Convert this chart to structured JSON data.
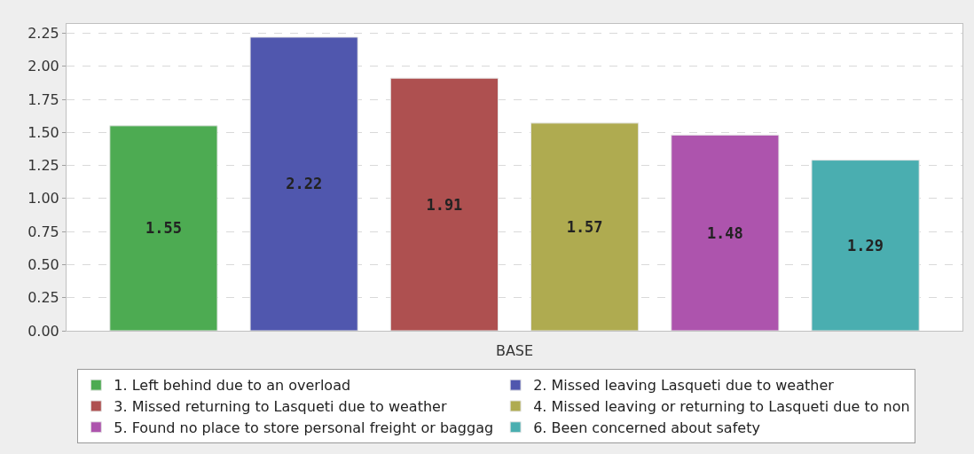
{
  "chart_data": {
    "type": "bar",
    "categories": [
      "BASE"
    ],
    "series": [
      {
        "name": "1. Left behind due to an overload",
        "color": "#4dab52",
        "values": [
          1.55
        ]
      },
      {
        "name": "2. Missed leaving Lasqueti due to weather",
        "color": "#5057ae",
        "values": [
          2.22
        ]
      },
      {
        "name": "3. Missed returning to Lasqueti due to weather",
        "color": "#ae5050",
        "values": [
          1.91
        ]
      },
      {
        "name": "4. Missed leaving or returning to Lasqueti due to non",
        "color": "#afab50",
        "values": [
          1.57
        ]
      },
      {
        "name": "5. Found no place to store personal freight or baggag",
        "color": "#ad54ad",
        "values": [
          1.48
        ]
      },
      {
        "name": "6. Been concerned about safety",
        "color": "#4aaeb0",
        "values": [
          1.29
        ]
      }
    ],
    "ylim": [
      0,
      2.32
    ],
    "yticks": [
      {
        "value": 0,
        "label": "0.00"
      },
      {
        "value": 0.25,
        "label": "0.25"
      },
      {
        "value": 0.5,
        "label": "0.50"
      },
      {
        "value": 0.75,
        "label": "0.75"
      },
      {
        "value": 1,
        "label": "1.00"
      },
      {
        "value": 1.25,
        "label": "1.25"
      },
      {
        "value": 1.5,
        "label": "1.50"
      },
      {
        "value": 1.75,
        "label": "1.75"
      },
      {
        "value": 2,
        "label": "2.00"
      },
      {
        "value": 2.25,
        "label": "2.25"
      }
    ],
    "grid": "y",
    "legend": "bottom",
    "data_labels": true
  }
}
